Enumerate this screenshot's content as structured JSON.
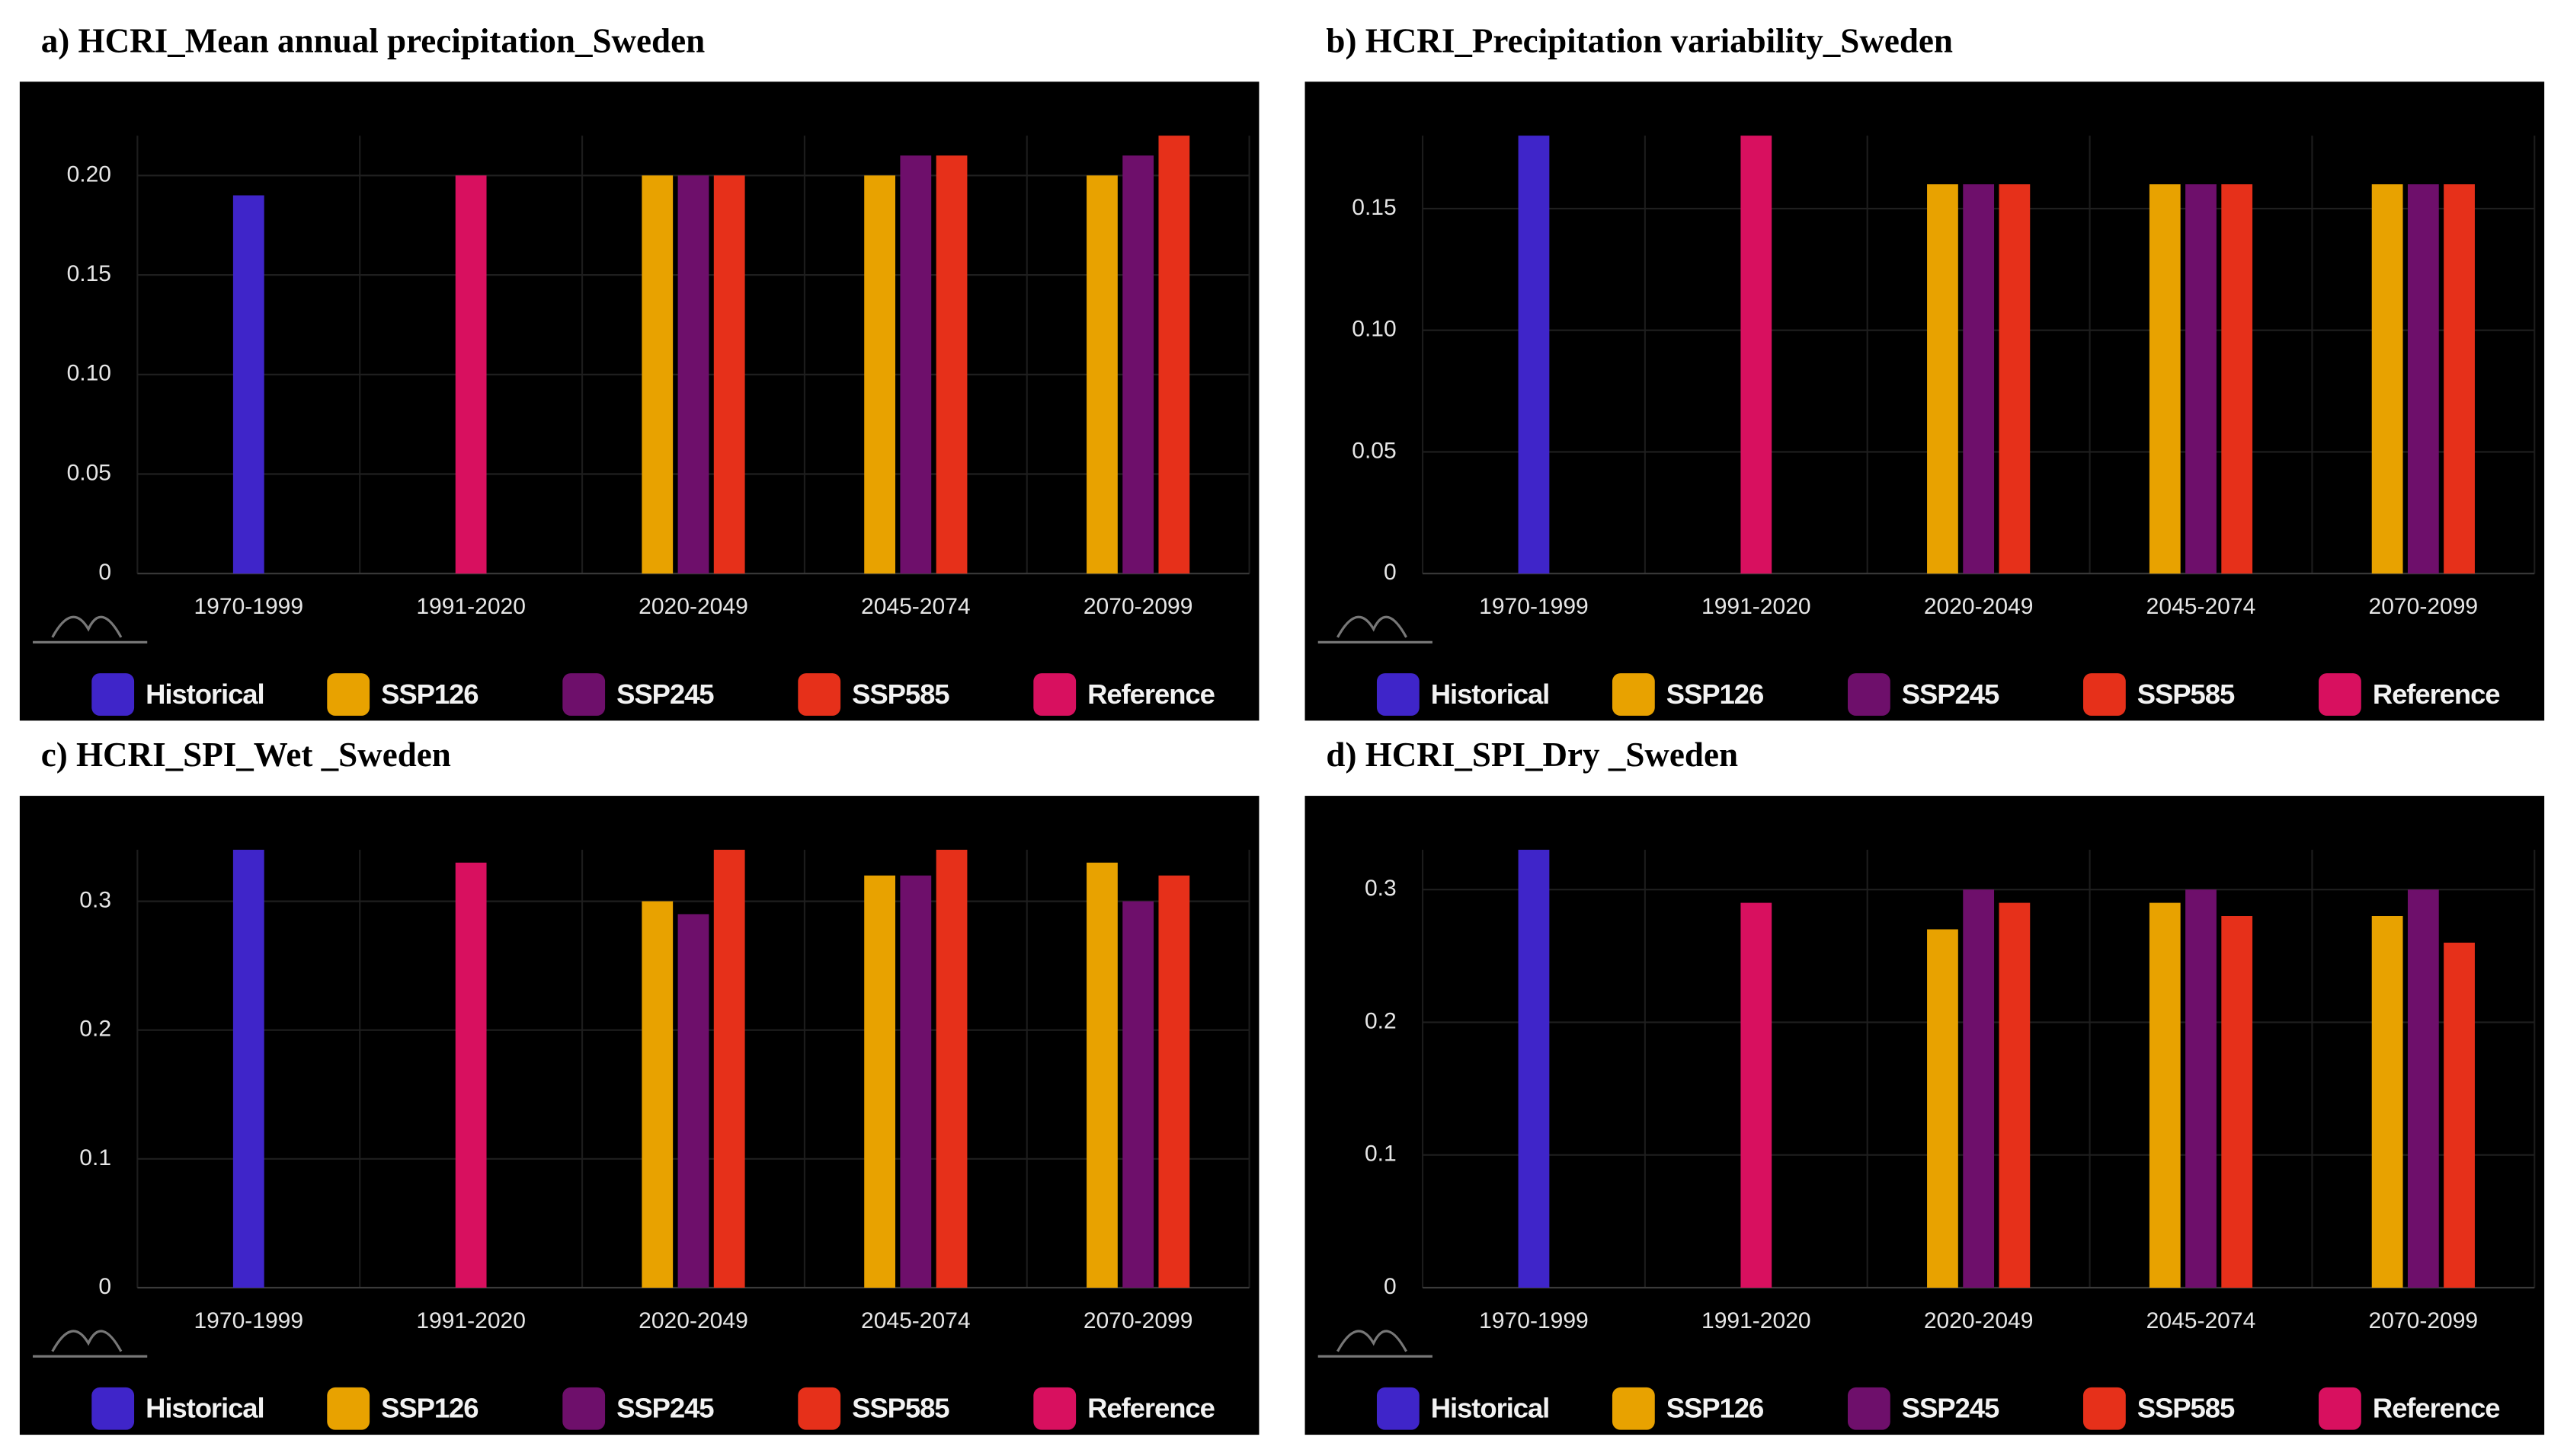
{
  "chart_data": [
    {
      "type": "bar",
      "title": "a) HCRI_Mean annual precipitation_Sweden",
      "categories": [
        "1970-1999",
        "1991-2020",
        "2020-2049",
        "2045-2074",
        "2070-2099"
      ],
      "series": [
        {
          "name": "Historical",
          "color": "#3f25c9",
          "values": [
            0.19,
            null,
            null,
            null,
            null
          ]
        },
        {
          "name": "SSP126",
          "color": "#e8a200",
          "values": [
            null,
            null,
            0.2,
            0.2,
            0.2
          ]
        },
        {
          "name": "SSP245",
          "color": "#6e0f6b",
          "values": [
            null,
            null,
            0.2,
            0.21,
            0.21
          ]
        },
        {
          "name": "SSP585",
          "color": "#e6301a",
          "values": [
            null,
            null,
            0.2,
            0.21,
            0.22
          ]
        },
        {
          "name": "Reference",
          "color": "#d8105f",
          "values": [
            null,
            0.2,
            null,
            null,
            null
          ]
        }
      ],
      "ylim": [
        0,
        0.22
      ],
      "yticks": [
        0,
        0.05,
        {
          "value": 0.1,
          "label": "0.10"
        },
        0.15,
        {
          "value": 0.2,
          "label": "0.20"
        }
      ],
      "grid": true
    },
    {
      "type": "bar",
      "title": "b) HCRI_Precipitation variability_Sweden",
      "categories": [
        "1970-1999",
        "1991-2020",
        "2020-2049",
        "2045-2074",
        "2070-2099"
      ],
      "series": [
        {
          "name": "Historical",
          "color": "#3f25c9",
          "values": [
            0.18,
            null,
            null,
            null,
            null
          ]
        },
        {
          "name": "SSP126",
          "color": "#e8a200",
          "values": [
            null,
            null,
            0.16,
            0.16,
            0.16
          ]
        },
        {
          "name": "SSP245",
          "color": "#6e0f6b",
          "values": [
            null,
            null,
            0.16,
            0.16,
            0.16
          ]
        },
        {
          "name": "SSP585",
          "color": "#e6301a",
          "values": [
            null,
            null,
            0.16,
            0.16,
            0.16
          ]
        },
        {
          "name": "Reference",
          "color": "#d8105f",
          "values": [
            null,
            0.18,
            null,
            null,
            null
          ]
        }
      ],
      "ylim": [
        0,
        0.18
      ],
      "yticks": [
        0,
        0.05,
        {
          "value": 0.1,
          "label": "0.10"
        },
        0.15
      ],
      "grid": true
    },
    {
      "type": "bar",
      "title": "c) HCRI_SPI_Wet _Sweden",
      "categories": [
        "1970-1999",
        "1991-2020",
        "2020-2049",
        "2045-2074",
        "2070-2099"
      ],
      "series": [
        {
          "name": "Historical",
          "color": "#3f25c9",
          "values": [
            0.34,
            null,
            null,
            null,
            null
          ]
        },
        {
          "name": "SSP126",
          "color": "#e8a200",
          "values": [
            null,
            null,
            0.3,
            0.32,
            0.33
          ]
        },
        {
          "name": "SSP245",
          "color": "#6e0f6b",
          "values": [
            null,
            null,
            0.29,
            0.32,
            0.3
          ]
        },
        {
          "name": "SSP585",
          "color": "#e6301a",
          "values": [
            null,
            null,
            0.34,
            0.34,
            0.32
          ]
        },
        {
          "name": "Reference",
          "color": "#d8105f",
          "values": [
            null,
            0.33,
            null,
            null,
            null
          ]
        }
      ],
      "ylim": [
        0,
        0.34
      ],
      "yticks": [
        0,
        0.1,
        0.2,
        0.3
      ],
      "grid": true
    },
    {
      "type": "bar",
      "title": "d) HCRI_SPI_Dry _Sweden",
      "categories": [
        "1970-1999",
        "1991-2020",
        "2020-2049",
        "2045-2074",
        "2070-2099"
      ],
      "series": [
        {
          "name": "Historical",
          "color": "#3f25c9",
          "values": [
            0.33,
            null,
            null,
            null,
            null
          ]
        },
        {
          "name": "SSP126",
          "color": "#e8a200",
          "values": [
            null,
            null,
            0.27,
            0.29,
            0.28
          ]
        },
        {
          "name": "SSP245",
          "color": "#6e0f6b",
          "values": [
            null,
            null,
            0.3,
            0.3,
            0.3
          ]
        },
        {
          "name": "SSP585",
          "color": "#e6301a",
          "values": [
            null,
            null,
            0.29,
            0.28,
            0.26
          ]
        },
        {
          "name": "Reference",
          "color": "#d8105f",
          "values": [
            null,
            0.29,
            null,
            null,
            null
          ]
        }
      ],
      "ylim": [
        0,
        0.33
      ],
      "yticks": [
        0,
        0.1,
        0.2,
        0.3
      ],
      "grid": true
    }
  ]
}
